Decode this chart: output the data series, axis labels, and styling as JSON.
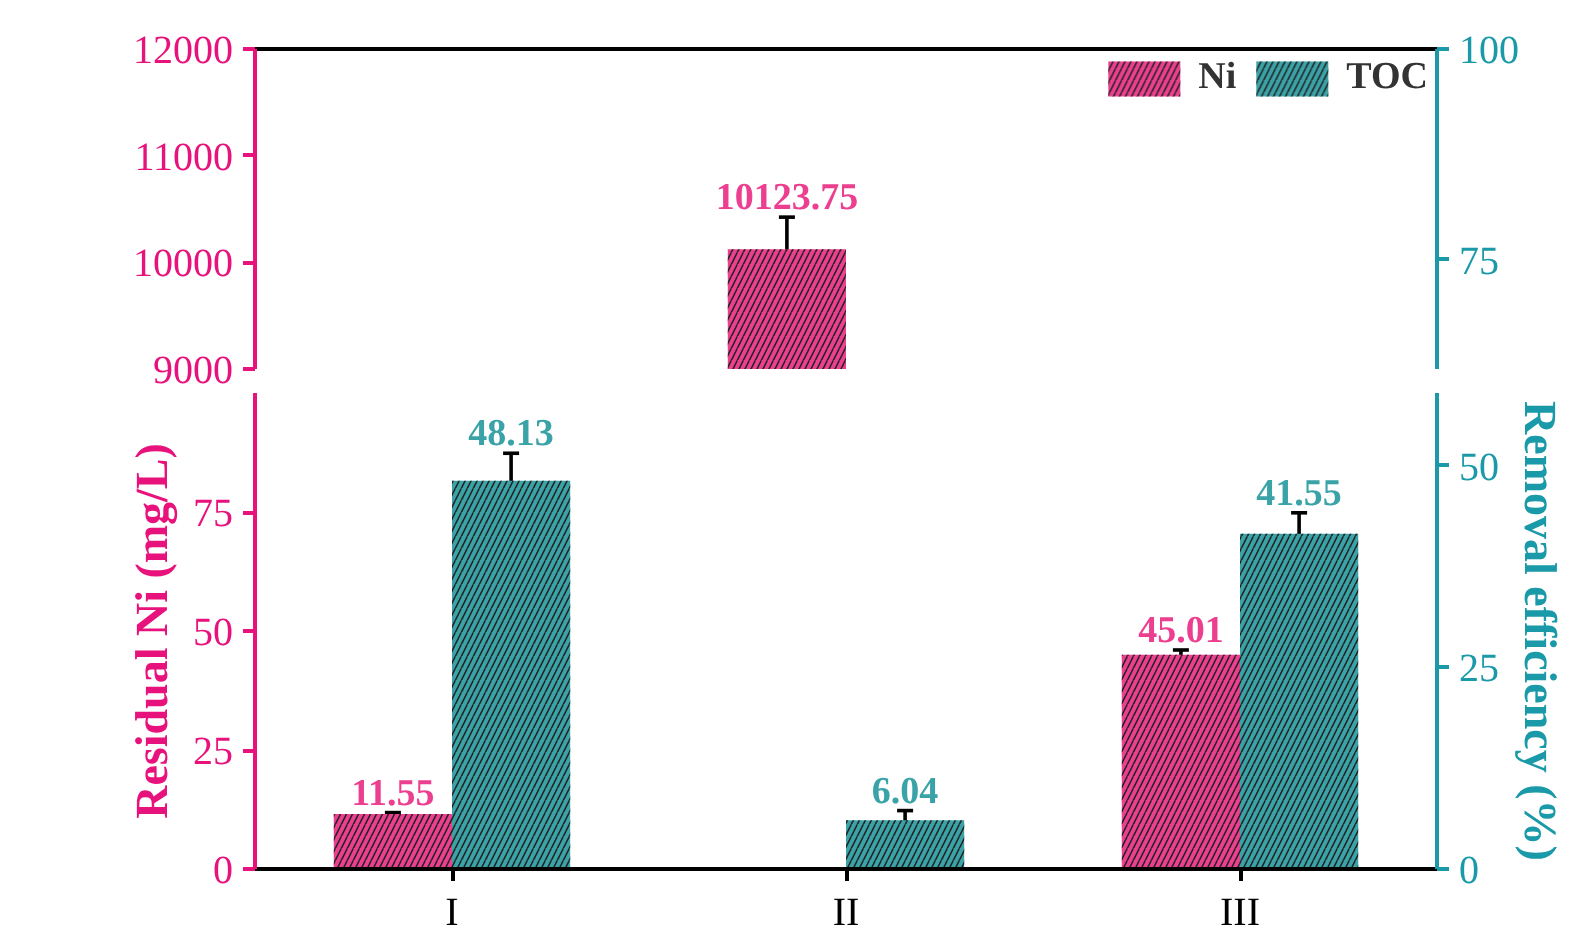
{
  "chart_data": [
    {
      "type": "bar",
      "categories": [
        null,
        null,
        null
      ],
      "ylim": [
        9000,
        12000
      ],
      "yticks": [
        9000,
        10000,
        11000,
        12000
      ],
      "y2lim": [
        62,
        100
      ],
      "y2ticks": [
        75,
        100
      ],
      "tick_labels": "y",
      "legend": "top right",
      "grid": false,
      "series": [
        {
          "name": "Ni",
          "color": "#ec3f8f",
          "values": [
            null,
            10123.75,
            null
          ],
          "errors": [
            null,
            300,
            null
          ],
          "value_labels": [
            null,
            "10123.75",
            null
          ]
        },
        {
          "name": "TOC",
          "color": "#3aa3a8",
          "axis": "y2",
          "values": [
            null,
            null,
            null
          ]
        }
      ]
    },
    {
      "type": "bar",
      "categories": [
        "I",
        "II",
        "III"
      ],
      "ylim": [
        0,
        100
      ],
      "yticks": [
        0,
        25,
        50,
        75
      ],
      "y2lim": [
        0,
        59
      ],
      "y2ticks": [
        0,
        25,
        50
      ],
      "ylabel": "Residual Ni (mg/L)",
      "y2label": "Removal efficiency (%)",
      "grid": false,
      "series": [
        {
          "color": "#ec3f8f",
          "values": [
            11.55,
            null,
            45.01
          ],
          "errors": [
            0.3,
            null,
            1
          ],
          "value_labels": [
            "11.55",
            null,
            "45.01"
          ]
        },
        {
          "color": "#3aa3a8",
          "axis": "y2",
          "values": [
            48.13,
            6.04,
            41.55
          ],
          "errors": [
            3.4,
            1.2,
            2.6
          ],
          "value_labels": [
            "48.13",
            "6.04",
            "41.55"
          ]
        }
      ]
    }
  ]
}
